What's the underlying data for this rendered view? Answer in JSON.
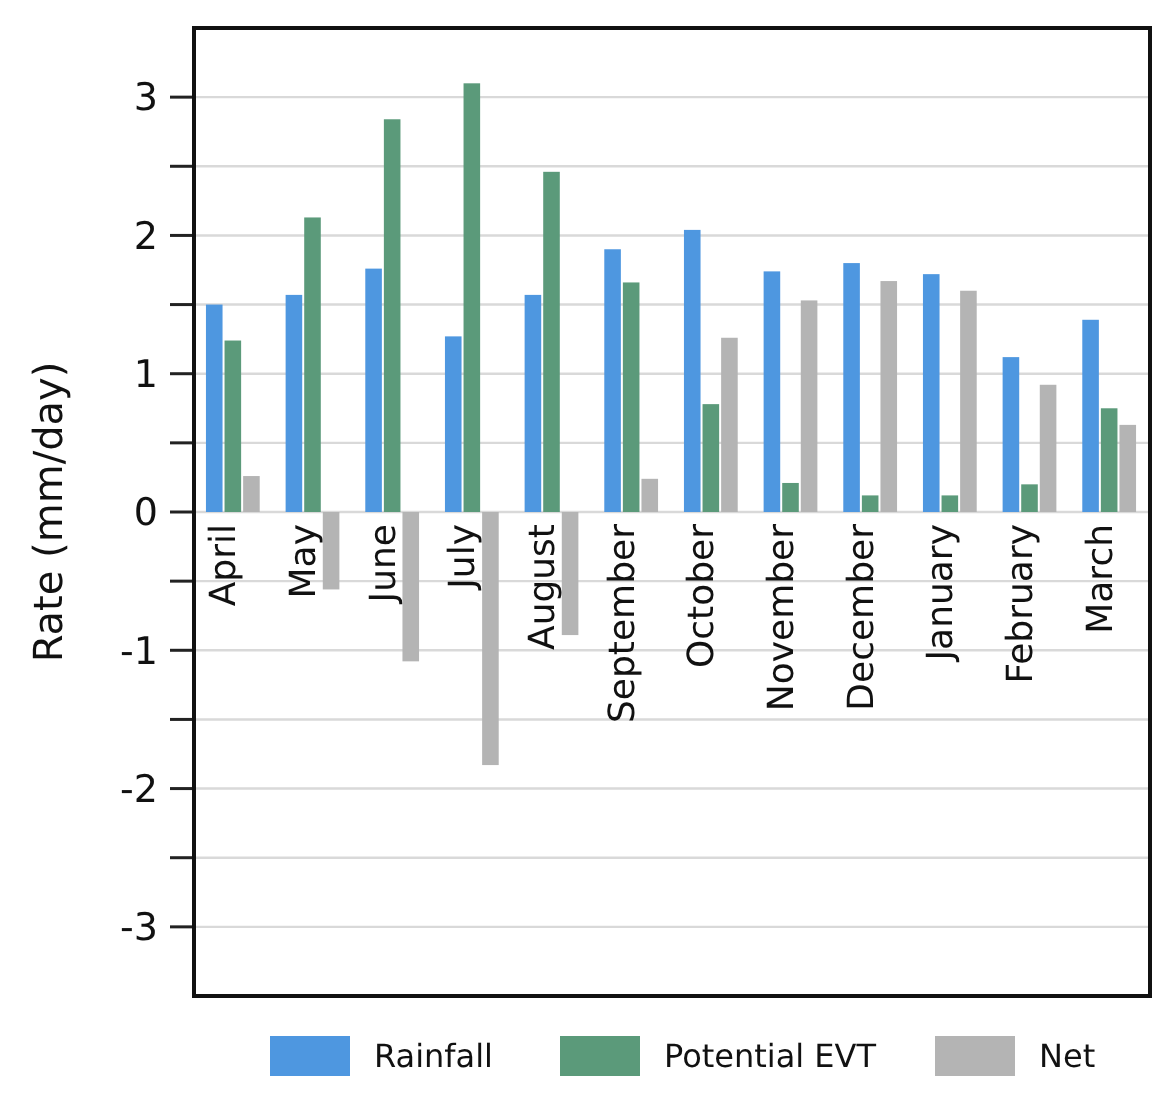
{
  "chart_data": {
    "type": "bar",
    "ylabel": "Rate (mm/day)",
    "categories": [
      "April",
      "May",
      "June",
      "July",
      "August",
      "September",
      "October",
      "November",
      "December",
      "January",
      "February",
      "March"
    ],
    "series": [
      {
        "name": "Rainfall",
        "color": "#4e97e0",
        "values": [
          1.5,
          1.57,
          1.76,
          1.27,
          1.57,
          1.9,
          2.04,
          1.74,
          1.8,
          1.72,
          1.12,
          1.39
        ]
      },
      {
        "name": "Potential EVT",
        "color": "#5b9a7a",
        "values": [
          1.24,
          2.13,
          2.84,
          3.1,
          2.46,
          1.66,
          0.78,
          0.21,
          0.12,
          0.12,
          0.2,
          0.75
        ]
      },
      {
        "name": "Net",
        "color": "#b4b4b4",
        "values": [
          0.26,
          -0.56,
          -1.08,
          -1.83,
          -0.89,
          0.24,
          1.26,
          1.53,
          1.67,
          1.6,
          0.92,
          0.63
        ]
      }
    ],
    "ylim": [
      -3.5,
      3.5
    ],
    "yticks": [
      -3,
      {
        "value": -2.5,
        "label": null
      },
      -2,
      {
        "value": -1.5,
        "label": null
      },
      -1,
      {
        "value": -0.5,
        "label": null
      },
      0,
      {
        "value": 0.5,
        "label": null
      },
      1,
      {
        "value": 1.5,
        "label": null
      },
      2,
      {
        "value": 2.5,
        "label": null
      },
      3
    ],
    "grid": "y",
    "legend": "bottom"
  }
}
